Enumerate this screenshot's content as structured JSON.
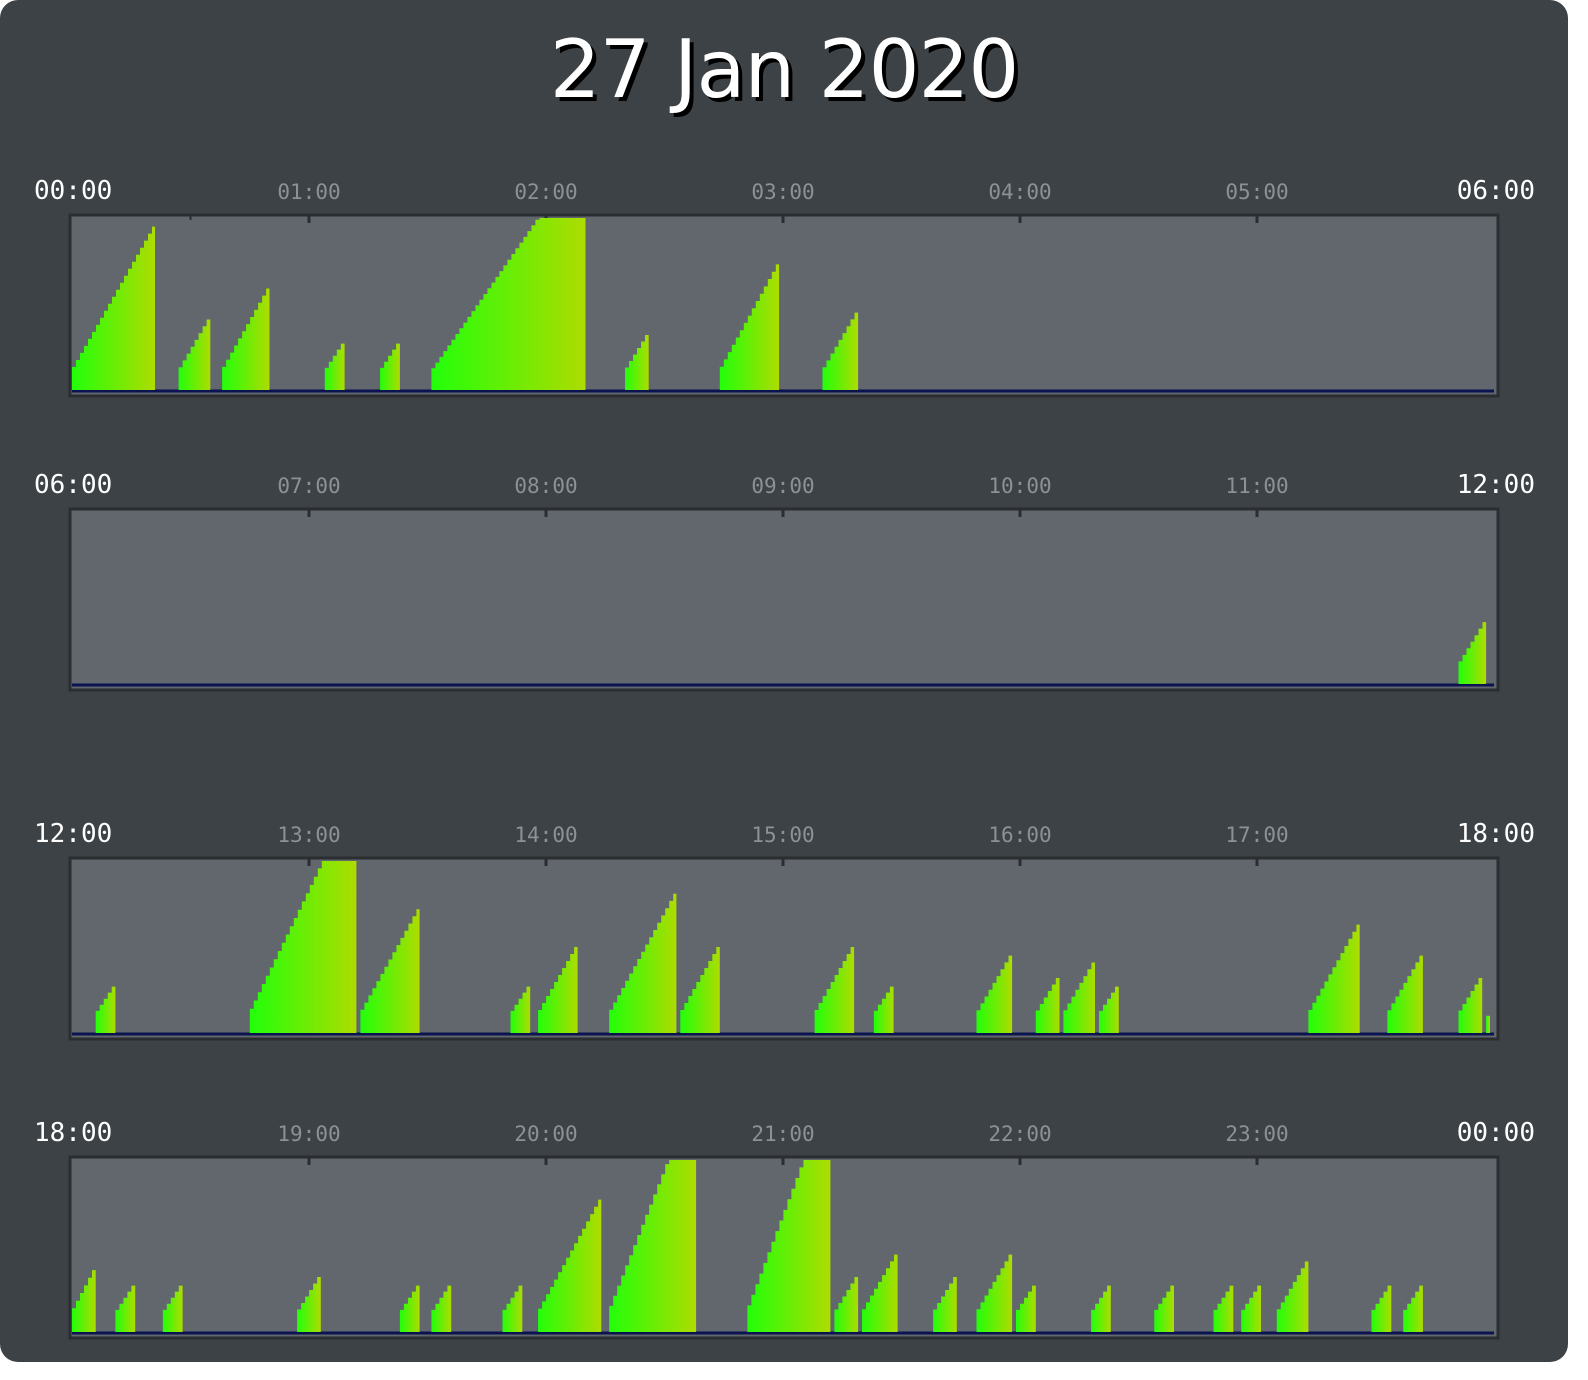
{
  "title": "27 Jan 2020",
  "colors": {
    "background": "#3d4246",
    "panel": "#62676e",
    "panel_border": "#2a2e31",
    "baseline": "#0b1450",
    "bar_low": "#22ff0a",
    "bar_high": "#aedc00",
    "title": "#ffffff"
  },
  "chart_data": [
    {
      "type": "area",
      "x_unit": "minutes",
      "hour_labels": [
        "00:00",
        "01:00",
        "02:00",
        "03:00",
        "04:00",
        "05:00",
        "06:00"
      ],
      "ylim": [
        0,
        1
      ],
      "segments": [
        {
          "start": 0,
          "end": 21,
          "peak": 0.95
        },
        {
          "start": 27,
          "end": 35,
          "peak": 0.41
        },
        {
          "start": 38,
          "end": 50,
          "peak": 0.59
        },
        {
          "start": 64,
          "end": 69,
          "peak": 0.27
        },
        {
          "start": 78,
          "end": 83,
          "peak": 0.27
        },
        {
          "start": 91,
          "end": 130,
          "peak": 1.0
        },
        {
          "start": 140,
          "end": 146,
          "peak": 0.32
        },
        {
          "start": 164,
          "end": 179,
          "peak": 0.73
        },
        {
          "start": 190,
          "end": 199,
          "peak": 0.45
        }
      ]
    },
    {
      "type": "area",
      "x_unit": "minutes",
      "hour_labels": [
        "06:00",
        "07:00",
        "08:00",
        "09:00",
        "10:00",
        "11:00",
        "12:00"
      ],
      "ylim": [
        0,
        1
      ],
      "segments": [
        {
          "start": 351,
          "end": 358,
          "peak": 0.36
        }
      ]
    },
    {
      "type": "area",
      "x_unit": "minutes",
      "hour_labels": [
        "12:00",
        "13:00",
        "14:00",
        "15:00",
        "16:00",
        "17:00",
        "18:00"
      ],
      "ylim": [
        0,
        1
      ],
      "segments": [
        {
          "start": 6,
          "end": 11,
          "peak": 0.27
        },
        {
          "start": 45,
          "end": 72,
          "peak": 1.0
        },
        {
          "start": 73,
          "end": 88,
          "peak": 0.72
        },
        {
          "start": 111,
          "end": 116,
          "peak": 0.27
        },
        {
          "start": 118,
          "end": 128,
          "peak": 0.5
        },
        {
          "start": 136,
          "end": 153,
          "peak": 0.81
        },
        {
          "start": 154,
          "end": 164,
          "peak": 0.5
        },
        {
          "start": 188,
          "end": 198,
          "peak": 0.5
        },
        {
          "start": 203,
          "end": 208,
          "peak": 0.27
        },
        {
          "start": 229,
          "end": 238,
          "peak": 0.45
        },
        {
          "start": 244,
          "end": 250,
          "peak": 0.32
        },
        {
          "start": 251,
          "end": 259,
          "peak": 0.41
        },
        {
          "start": 260,
          "end": 265,
          "peak": 0.27
        },
        {
          "start": 313,
          "end": 326,
          "peak": 0.63
        },
        {
          "start": 333,
          "end": 342,
          "peak": 0.45
        },
        {
          "start": 351,
          "end": 357,
          "peak": 0.32
        },
        {
          "start": 358,
          "end": 359,
          "peak": 0.1
        }
      ]
    },
    {
      "type": "area",
      "x_unit": "minutes",
      "hour_labels": [
        "18:00",
        "19:00",
        "20:00",
        "21:00",
        "22:00",
        "23:00",
        "00:00"
      ],
      "ylim": [
        0,
        1
      ],
      "segments": [
        {
          "start": 0,
          "end": 6,
          "peak": 0.36
        },
        {
          "start": 11,
          "end": 16,
          "peak": 0.27
        },
        {
          "start": 23,
          "end": 28,
          "peak": 0.27
        },
        {
          "start": 57,
          "end": 63,
          "peak": 0.32
        },
        {
          "start": 83,
          "end": 88,
          "peak": 0.27
        },
        {
          "start": 91,
          "end": 96,
          "peak": 0.27
        },
        {
          "start": 109,
          "end": 114,
          "peak": 0.27
        },
        {
          "start": 118,
          "end": 134,
          "peak": 0.77
        },
        {
          "start": 136,
          "end": 158,
          "peak": 1.0
        },
        {
          "start": 171,
          "end": 192,
          "peak": 1.0
        },
        {
          "start": 193,
          "end": 199,
          "peak": 0.32
        },
        {
          "start": 200,
          "end": 209,
          "peak": 0.45
        },
        {
          "start": 218,
          "end": 224,
          "peak": 0.32
        },
        {
          "start": 229,
          "end": 238,
          "peak": 0.45
        },
        {
          "start": 239,
          "end": 244,
          "peak": 0.27
        },
        {
          "start": 258,
          "end": 263,
          "peak": 0.27
        },
        {
          "start": 274,
          "end": 279,
          "peak": 0.27
        },
        {
          "start": 289,
          "end": 294,
          "peak": 0.27
        },
        {
          "start": 296,
          "end": 301,
          "peak": 0.27
        },
        {
          "start": 305,
          "end": 313,
          "peak": 0.41
        },
        {
          "start": 329,
          "end": 334,
          "peak": 0.27
        },
        {
          "start": 337,
          "end": 342,
          "peak": 0.27
        }
      ]
    }
  ]
}
